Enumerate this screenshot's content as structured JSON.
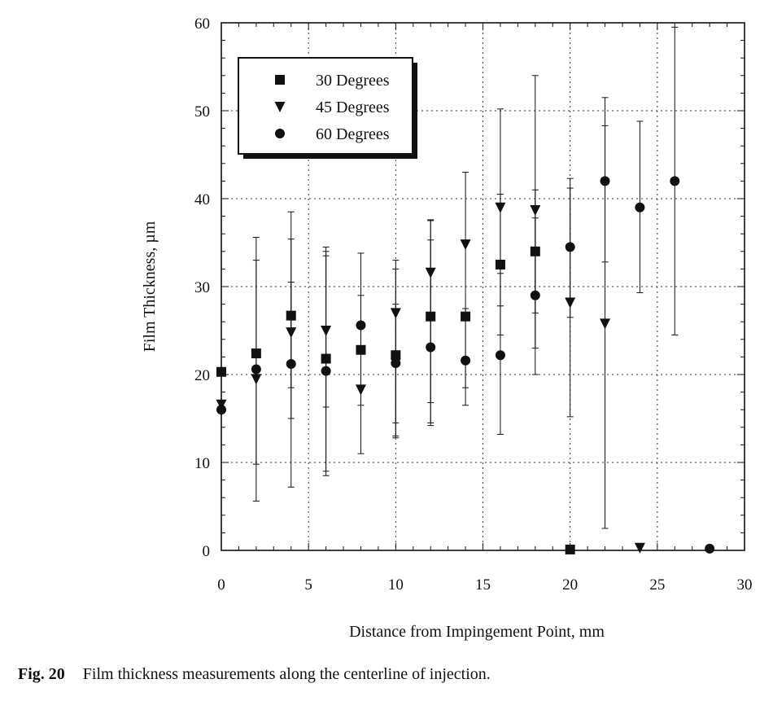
{
  "chart_data": {
    "type": "scatter",
    "xlabel": "Distance from Impingement Point, mm",
    "ylabel": "Film Thickness, µm",
    "xlim": [
      0,
      30
    ],
    "ylim": [
      0,
      60
    ],
    "xticks": [
      0,
      5,
      10,
      15,
      20,
      25,
      30
    ],
    "yticks": [
      0,
      10,
      20,
      30,
      40,
      50,
      60
    ],
    "grid": "dotted",
    "legend_position": "top-left",
    "series": [
      {
        "name": "30 Degrees",
        "marker": "square",
        "points": [
          {
            "x": 0,
            "y": 20.3
          },
          {
            "x": 2,
            "y": 22.4
          },
          {
            "x": 4,
            "y": 26.7,
            "err_low": 7.2,
            "err_high": 38.5
          },
          {
            "x": 6,
            "y": 21.8,
            "err_low": 9.0,
            "err_high": 34.0
          },
          {
            "x": 8,
            "y": 22.8
          },
          {
            "x": 10,
            "y": 22.2,
            "err_low": 13.0,
            "err_high": 32.0
          },
          {
            "x": 12,
            "y": 26.6,
            "err_low": 16.8,
            "err_high": 37.6
          },
          {
            "x": 14,
            "y": 26.6
          },
          {
            "x": 16,
            "y": 32.5,
            "err_low": 24.5,
            "err_high": 40.5
          },
          {
            "x": 18,
            "y": 34.0,
            "err_low": 27.0,
            "err_high": 41.0
          },
          {
            "x": 20,
            "y": 0.1
          }
        ]
      },
      {
        "name": "45 Degrees",
        "marker": "triangle-down",
        "points": [
          {
            "x": 0,
            "y": 16.6
          },
          {
            "x": 2,
            "y": 19.5,
            "err_low": 5.6,
            "err_high": 35.6
          },
          {
            "x": 4,
            "y": 24.8,
            "err_low": 15.0,
            "err_high": 35.4
          },
          {
            "x": 6,
            "y": 25.0,
            "err_low": 8.5,
            "err_high": 34.5
          },
          {
            "x": 8,
            "y": 18.3,
            "err_low": 11.0,
            "err_high": 33.8
          },
          {
            "x": 10,
            "y": 27.0,
            "err_low": 14.5,
            "err_high": 33.0
          },
          {
            "x": 12,
            "y": 31.6,
            "err_low": 14.2,
            "err_high": 37.5
          },
          {
            "x": 14,
            "y": 34.8,
            "err_low": 18.5,
            "err_high": 43.0
          },
          {
            "x": 16,
            "y": 39.0,
            "err_low": 27.8,
            "err_high": 50.2
          },
          {
            "x": 18,
            "y": 38.7,
            "err_low": 23.0,
            "err_high": 54.0
          },
          {
            "x": 20,
            "y": 28.2,
            "err_low": 15.2,
            "err_high": 41.2
          },
          {
            "x": 22,
            "y": 25.8,
            "err_low": 2.5,
            "err_high": 48.3
          },
          {
            "x": 24,
            "y": 0.3
          }
        ]
      },
      {
        "name": "60 Degrees",
        "marker": "circle",
        "points": [
          {
            "x": 0,
            "y": 16.0
          },
          {
            "x": 2,
            "y": 20.6,
            "err_low": 9.8,
            "err_high": 33.0
          },
          {
            "x": 4,
            "y": 21.2,
            "err_low": 18.5,
            "err_high": 30.5
          },
          {
            "x": 6,
            "y": 20.4,
            "err_low": 16.3,
            "err_high": 33.5
          },
          {
            "x": 8,
            "y": 25.6,
            "err_low": 16.5,
            "err_high": 29.0
          },
          {
            "x": 10,
            "y": 21.3,
            "err_low": 12.8,
            "err_high": 28.0
          },
          {
            "x": 12,
            "y": 23.1,
            "err_low": 14.5,
            "err_high": 35.3
          },
          {
            "x": 14,
            "y": 21.6,
            "err_low": 16.5,
            "err_high": 27.5
          },
          {
            "x": 16,
            "y": 22.2,
            "err_low": 13.2,
            "err_high": 31.5
          },
          {
            "x": 18,
            "y": 29.0,
            "err_low": 20.0,
            "err_high": 37.8
          },
          {
            "x": 20,
            "y": 34.5,
            "err_low": 26.5,
            "err_high": 42.3
          },
          {
            "x": 22,
            "y": 42.0,
            "err_low": 32.8,
            "err_high": 51.5
          },
          {
            "x": 24,
            "y": 39.0,
            "err_low": 29.3,
            "err_high": 48.8
          },
          {
            "x": 26,
            "y": 42.0,
            "err_low": 24.5,
            "err_high": 59.5
          },
          {
            "x": 28,
            "y": 0.2
          }
        ]
      }
    ]
  },
  "caption": {
    "figure_number": "Fig. 20",
    "text": "Film thickness measurements along the centerline of injection."
  }
}
